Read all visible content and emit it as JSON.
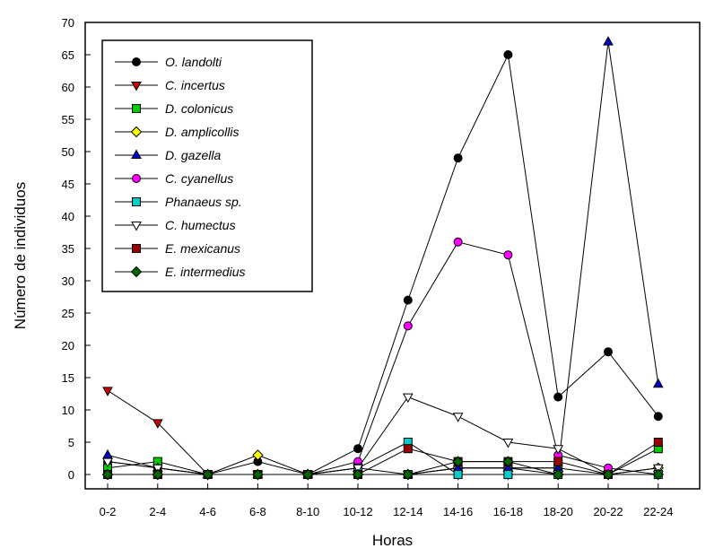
{
  "chart_data": {
    "type": "line",
    "xlabel": "Horas",
    "ylabel": "Número de individuos",
    "ylim": [
      0,
      70
    ],
    "yticks": [
      0,
      5,
      10,
      15,
      20,
      25,
      30,
      35,
      40,
      45,
      50,
      55,
      60,
      65,
      70
    ],
    "categories": [
      "0-2",
      "2-4",
      "4-6",
      "6-8",
      "8-10",
      "10-12",
      "12-14",
      "14-16",
      "16-18",
      "18-20",
      "20-22",
      "22-24"
    ],
    "grid": false,
    "legend_position": "top-left",
    "series": [
      {
        "name": "O. landolti",
        "marker": "circle",
        "fill": "#000000",
        "values": [
          2,
          1,
          0,
          2,
          0,
          4,
          27,
          49,
          65,
          12,
          19,
          9
        ]
      },
      {
        "name": "C. incertus",
        "marker": "triangle-down",
        "fill": "#cc0000",
        "values": [
          13,
          8,
          0,
          0,
          0,
          0,
          0,
          0,
          0,
          0,
          0,
          0
        ]
      },
      {
        "name": "D. colonicus",
        "marker": "square",
        "fill": "#00cc00",
        "values": [
          1,
          2,
          0,
          0,
          0,
          0,
          0,
          1,
          1,
          1,
          0,
          4
        ]
      },
      {
        "name": "D. amplicollis",
        "marker": "diamond",
        "fill": "#ffff00",
        "values": [
          0,
          0,
          0,
          3,
          0,
          0,
          0,
          1,
          1,
          0,
          0,
          1
        ]
      },
      {
        "name": "D. gazella",
        "marker": "triangle-up",
        "fill": "#0000cc",
        "values": [
          3,
          1,
          0,
          0,
          0,
          1,
          0,
          1,
          1,
          1,
          67,
          14
        ]
      },
      {
        "name": "C. cyanellus",
        "marker": "circle",
        "fill": "#ff00ff",
        "values": [
          0,
          0,
          0,
          0,
          0,
          2,
          23,
          36,
          34,
          3,
          1,
          0
        ]
      },
      {
        "name": "Phanaeus sp.",
        "marker": "square",
        "fill": "#00cccc",
        "values": [
          0,
          0,
          0,
          0,
          0,
          1,
          5,
          0,
          0,
          0,
          0,
          0
        ]
      },
      {
        "name": "C. humectus",
        "marker": "triangle-down",
        "fill": "#ffffff",
        "values": [
          2,
          1,
          0,
          0,
          0,
          1,
          12,
          9,
          5,
          4,
          0,
          1
        ]
      },
      {
        "name": "E. mexicanus",
        "marker": "square",
        "fill": "#990000",
        "values": [
          0,
          0,
          0,
          0,
          0,
          0,
          4,
          2,
          2,
          2,
          0,
          5
        ]
      },
      {
        "name": "E. intermedius",
        "marker": "diamond",
        "fill": "#006600",
        "values": [
          0,
          0,
          0,
          0,
          0,
          0,
          0,
          2,
          2,
          0,
          0,
          0
        ]
      }
    ]
  }
}
